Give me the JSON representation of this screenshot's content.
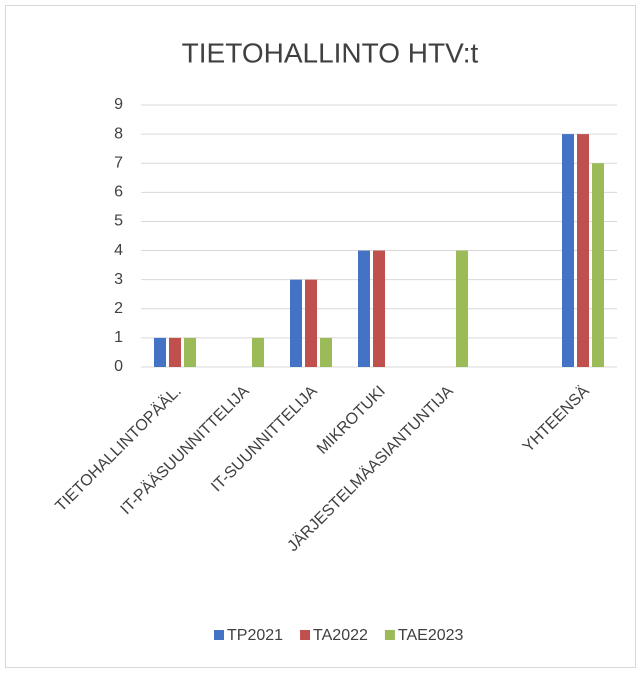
{
  "chart_data": {
    "type": "bar",
    "title": "TIETOHALLINTO HTV:t",
    "categories": [
      "TIETOHALLINTOPÄÄL.",
      "IT-PÄÄSUUNNITTELIJA",
      "IT-SUUNNITTELIJA",
      "MIKROTUKI",
      "JÄRJESTELMÄASIANTUNTIJA",
      null,
      "YHTEENSÄ"
    ],
    "series": [
      {
        "name": "TP2021",
        "color": "#4472c4",
        "values": [
          1,
          null,
          3,
          4,
          null,
          null,
          8
        ]
      },
      {
        "name": "TA2022",
        "color": "#c0504d",
        "values": [
          1,
          null,
          3,
          4,
          null,
          null,
          8
        ]
      },
      {
        "name": "TAE2023",
        "color": "#9bbb59",
        "values": [
          1,
          1,
          1,
          null,
          4,
          null,
          7
        ]
      }
    ],
    "ylim": [
      0,
      9
    ],
    "yticks": [
      0,
      1,
      2,
      3,
      4,
      5,
      6,
      7,
      8,
      9
    ],
    "grid": true,
    "legend": "bottom"
  }
}
